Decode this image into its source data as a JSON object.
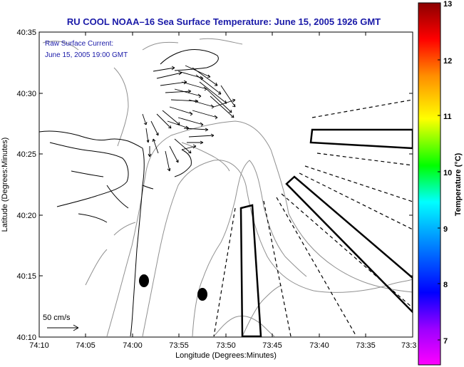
{
  "title": "RU COOL  NOAA–16  Sea Surface Temperature:  June 15, 2005 1926 GMT",
  "annotation": {
    "line1": "Raw Surface Current:",
    "line2": "June 15, 2005 19:00 GMT"
  },
  "scale_label": "50 cm/s",
  "axes": {
    "xlabel": "Longitude (Degrees:Minutes)",
    "ylabel": "Latitude (Degrees:Minutes)",
    "x_ticks": [
      "74:10",
      "74:05",
      "74:00",
      "73:55",
      "73:50",
      "73:45",
      "73:40",
      "73:35",
      "73:3"
    ],
    "y_ticks": [
      "40:35",
      "40:30",
      "40:25",
      "40:20",
      "40:15",
      "40:10"
    ]
  },
  "colorbar": {
    "label": "Temperature (°C)",
    "ticks": [
      "13",
      "12",
      "11",
      "10",
      "9",
      "8",
      "7"
    ],
    "colors": [
      "#8b0000",
      "#ff0000",
      "#ff8c00",
      "#ffff00",
      "#00ff00",
      "#00ffff",
      "#0000ff",
      "#ff00ff"
    ]
  },
  "colors": {
    "title": "#1a1aa8",
    "land_outline": "#000000",
    "bathymetry": "#909090"
  }
}
